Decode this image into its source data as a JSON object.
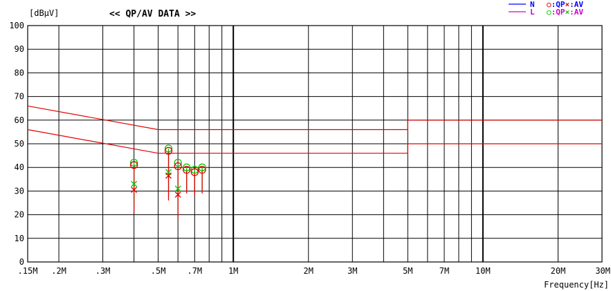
{
  "chart_data": {
    "type": "scatter",
    "title": "<< QP/AV DATA >>",
    "ylabel": "[dBμV]",
    "xlabel": "Frequency[Hz]",
    "x_scale": "log",
    "xlim": [
      150000,
      30000000
    ],
    "ylim": [
      0,
      100
    ],
    "y_ticks": [
      0,
      10,
      20,
      30,
      40,
      50,
      60,
      70,
      80,
      90,
      100
    ],
    "x_ticks": [
      {
        "value": 150000,
        "label": ".15M"
      },
      {
        "value": 200000,
        "label": ".2M"
      },
      {
        "value": 300000,
        "label": ".3M"
      },
      {
        "value": 500000,
        "label": ".5M"
      },
      {
        "value": 700000,
        "label": ".7M"
      },
      {
        "value": 1000000,
        "label": "1M"
      },
      {
        "value": 2000000,
        "label": "2M"
      },
      {
        "value": 3000000,
        "label": "3M"
      },
      {
        "value": 5000000,
        "label": "5M"
      },
      {
        "value": 7000000,
        "label": "7M"
      },
      {
        "value": 10000000,
        "label": "10M"
      },
      {
        "value": 20000000,
        "label": "20M"
      },
      {
        "value": 30000000,
        "label": "30M"
      }
    ],
    "grid": true,
    "limit_lines": [
      {
        "name": "QP limit",
        "color": "#e00000",
        "points": [
          [
            150000,
            66
          ],
          [
            500000,
            56
          ],
          [
            5000000,
            56
          ],
          [
            5000000,
            60
          ],
          [
            30000000,
            60
          ]
        ]
      },
      {
        "name": "AV limit",
        "color": "#e00000",
        "points": [
          [
            150000,
            56
          ],
          [
            500000,
            46
          ],
          [
            5000000,
            46
          ],
          [
            5000000,
            50
          ],
          [
            30000000,
            50
          ]
        ]
      }
    ],
    "legend": {
      "position": "top-right",
      "entries": [
        {
          "line_label": "N",
          "line_color": "#0000ff",
          "qp_symbol": "○",
          "qp_color": "#e00000",
          "qp_text": ":QP",
          "av_symbol": "×",
          "av_color": "#e00000",
          "av_text": ":AV"
        },
        {
          "line_label": "L",
          "line_color": "#cc00cc",
          "qp_symbol": "○",
          "qp_color": "#00cc00",
          "qp_text": ":QP",
          "av_symbol": "×",
          "av_color": "#00cc00",
          "av_text": ":AV"
        }
      ]
    },
    "series": [
      {
        "name": "N",
        "color": "#e00000",
        "points": [
          {
            "x": 400000,
            "qp": 41,
            "av": 30.5,
            "base": 21
          },
          {
            "x": 550000,
            "qp": 47,
            "av": 36.5,
            "base": 26
          },
          {
            "x": 600000,
            "qp": 40.5,
            "av": 28.5,
            "base": 18
          },
          {
            "x": 650000,
            "qp": 39,
            "av": null,
            "base": 29
          },
          {
            "x": 700000,
            "qp": 38,
            "av": null,
            "base": 28
          },
          {
            "x": 750000,
            "qp": 39,
            "av": null,
            "base": 29
          }
        ]
      },
      {
        "name": "L",
        "color": "#00cc00",
        "points": [
          {
            "x": 400000,
            "qp": 42,
            "av": 33,
            "base": 25
          },
          {
            "x": 550000,
            "qp": 48,
            "av": 38,
            "base": 28
          },
          {
            "x": 600000,
            "qp": 42,
            "av": 31,
            "base": 22
          },
          {
            "x": 650000,
            "qp": 40,
            "av": null,
            "base": 30
          },
          {
            "x": 700000,
            "qp": 39,
            "av": null,
            "base": 30
          },
          {
            "x": 750000,
            "qp": 40,
            "av": null,
            "base": 30
          }
        ]
      }
    ]
  }
}
